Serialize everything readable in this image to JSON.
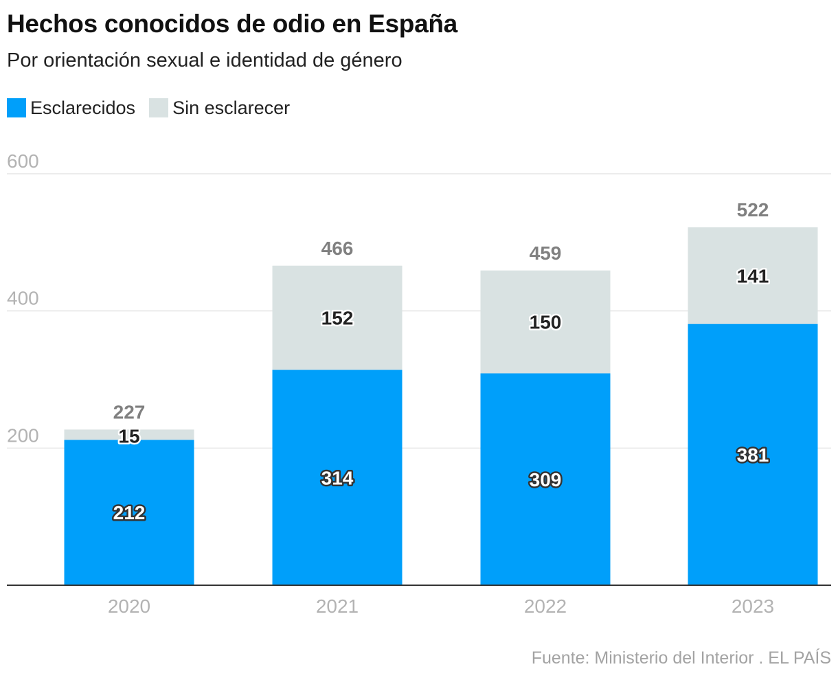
{
  "chart_data": {
    "type": "bar",
    "stacked": true,
    "title": "Hechos conocidos de odio en España",
    "subtitle": "Por orientación sexual e identidad de género",
    "categories": [
      "2020",
      "2021",
      "2022",
      "2023"
    ],
    "series": [
      {
        "name": "Esclarecidos",
        "values": [
          212,
          314,
          309,
          381
        ],
        "color": "#009ffa"
      },
      {
        "name": "Sin esclarecer",
        "values": [
          15,
          152,
          150,
          141
        ],
        "color": "#d9e2e2"
      }
    ],
    "totals": [
      227,
      466,
      459,
      522
    ],
    "y_ticks": [
      200,
      400,
      600
    ],
    "ylim": [
      0,
      600
    ],
    "xlabel": "",
    "ylabel": "",
    "grid": true,
    "legend_position": "top-left",
    "source": "Fuente: Ministerio del Interior . EL PAÍS"
  }
}
